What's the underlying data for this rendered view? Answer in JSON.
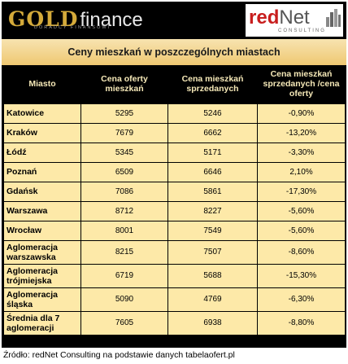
{
  "header": {
    "gold_logo": {
      "gold": "GOLD",
      "finance": "finance",
      "tagline": "DORADCY FINANSOWI"
    },
    "rednet_logo": {
      "red": "red",
      "net": "Net",
      "tagline": "CONSULTING"
    },
    "colors": {
      "gold": "#d4aa3a",
      "brand_red": "#c81e1e",
      "row_fill": "#fde9a8",
      "header_bg": "#000000"
    }
  },
  "chart_data": {
    "type": "table",
    "title": "Ceny mieszkań w poszczególnych miastach",
    "columns": [
      "Miasto",
      "Cena oferty mieszkań",
      "Cena mieszkań sprzedanych",
      "Cena mieszkań sprzedanych /cena oferty"
    ],
    "rows": [
      {
        "city": "Katowice",
        "offer": "5295",
        "sold": "5246",
        "ratio": "-0,90%"
      },
      {
        "city": "Kraków",
        "offer": "7679",
        "sold": "6662",
        "ratio": "-13,20%"
      },
      {
        "city": "Łódź",
        "offer": "5345",
        "sold": "5171",
        "ratio": "-3,30%"
      },
      {
        "city": "Poznań",
        "offer": "6509",
        "sold": "6646",
        "ratio": "2,10%"
      },
      {
        "city": "Gdańsk",
        "offer": "7086",
        "sold": "5861",
        "ratio": "-17,30%"
      },
      {
        "city": "Warszawa",
        "offer": "8712",
        "sold": "8227",
        "ratio": "-5,60%"
      },
      {
        "city": "Wrocław",
        "offer": "8001",
        "sold": "7549",
        "ratio": "-5,60%"
      },
      {
        "city": "Aglomeracja warszawska",
        "offer": "8215",
        "sold": "7507",
        "ratio": "-8,60%"
      },
      {
        "city": "Aglomeracja trójmiejska",
        "offer": "6719",
        "sold": "5688",
        "ratio": "-15,30%"
      },
      {
        "city": "Aglomeracja śląska",
        "offer": "5090",
        "sold": "4769",
        "ratio": "-6,30%"
      },
      {
        "city": "Średnia dla 7 aglomeracji",
        "offer": "7605",
        "sold": "6938",
        "ratio": "-8,80%"
      }
    ]
  },
  "source": "Źródło: redNet Consulting na podstawie danych tabelaofert.pl"
}
